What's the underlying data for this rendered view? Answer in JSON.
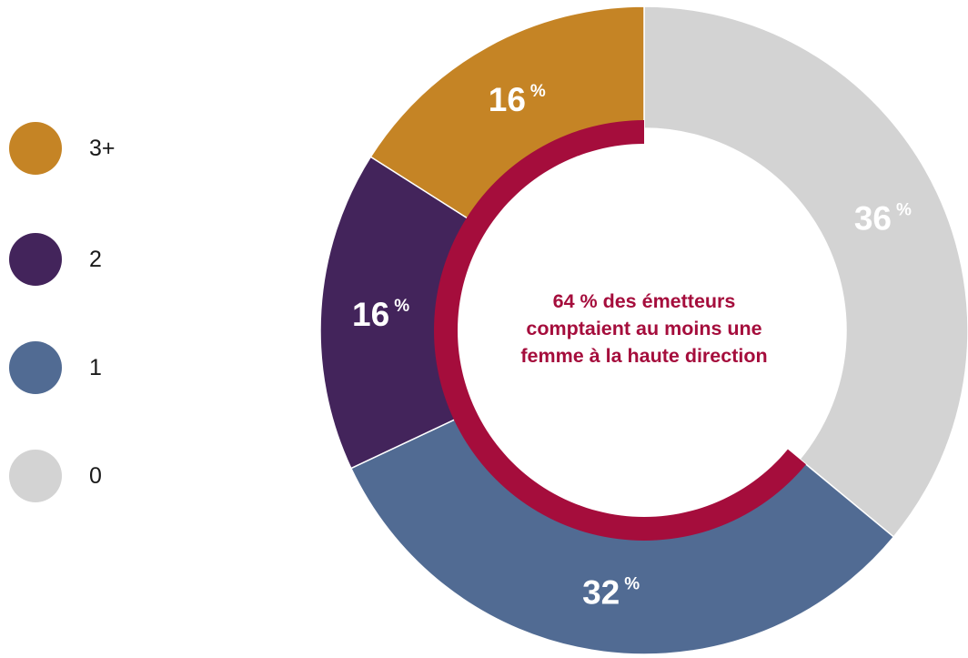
{
  "chart_data": {
    "type": "pie",
    "categories": [
      "0",
      "1",
      "2",
      "3+"
    ],
    "values": [
      36,
      32,
      16,
      16
    ],
    "value_labels": [
      "36",
      "32",
      "16",
      "16"
    ],
    "unit_label": "%",
    "colors": [
      "#d3d3d3",
      "#516b93",
      "#43245b",
      "#c58425"
    ],
    "legend": {
      "placement": "left",
      "entries": [
        "3+",
        "2",
        "1",
        "0"
      ],
      "entry_colors": [
        "#c58425",
        "#43245b",
        "#516b93",
        "#d3d3d3"
      ]
    },
    "inner_ring": {
      "value": 64,
      "color": "#a50d3c",
      "track_color": "#ffffff"
    },
    "center_text": {
      "line1": "64 % des émetteurs",
      "line2": "comptaient au moins une",
      "line3": "femme à la haute direction"
    }
  }
}
